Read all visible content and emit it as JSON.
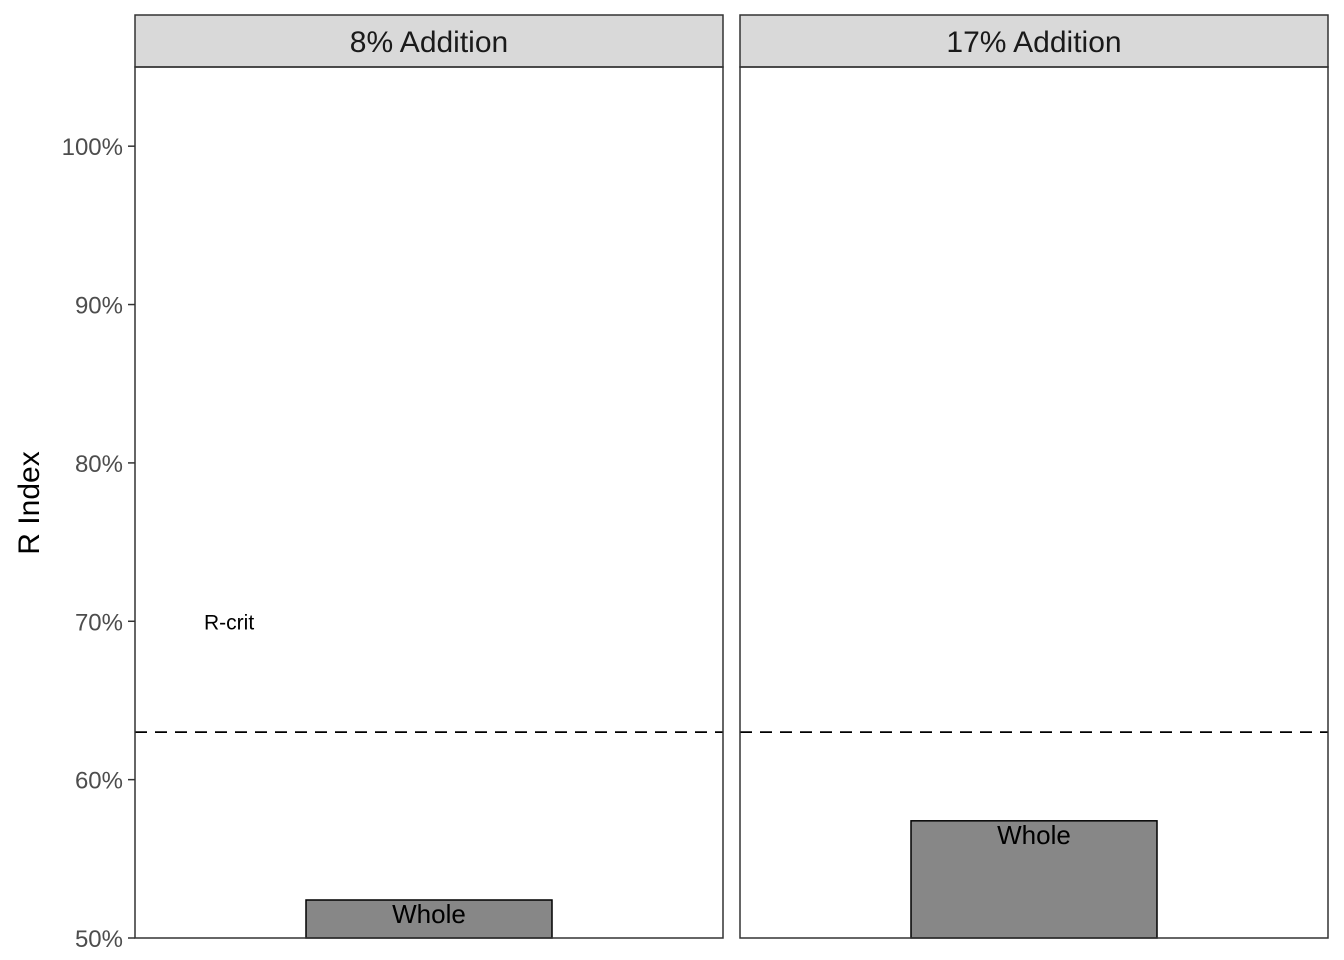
{
  "chart_data": {
    "type": "bar",
    "ylabel": "R Index",
    "xlabel": "",
    "ylim": [
      50,
      105
    ],
    "y_ticks": [
      {
        "value": 50,
        "label": "50%"
      },
      {
        "value": 60,
        "label": "60%"
      },
      {
        "value": 70,
        "label": "70%"
      },
      {
        "value": 80,
        "label": "80%"
      },
      {
        "value": 90,
        "label": "90%"
      },
      {
        "value": 100,
        "label": "100%"
      }
    ],
    "reference_line": {
      "value": 63,
      "style": "dashed"
    },
    "annotation": {
      "text": "R-crit",
      "panel": 0,
      "value": 70
    },
    "bar_color": "#878787",
    "strip_color": "#d9d9d9",
    "grid": false,
    "panels": [
      {
        "title": "8% Addition",
        "bars": [
          {
            "label": "Whole",
            "value": 52.4
          }
        ]
      },
      {
        "title": "17% Addition",
        "bars": [
          {
            "label": "Whole",
            "value": 57.4
          }
        ]
      }
    ]
  }
}
